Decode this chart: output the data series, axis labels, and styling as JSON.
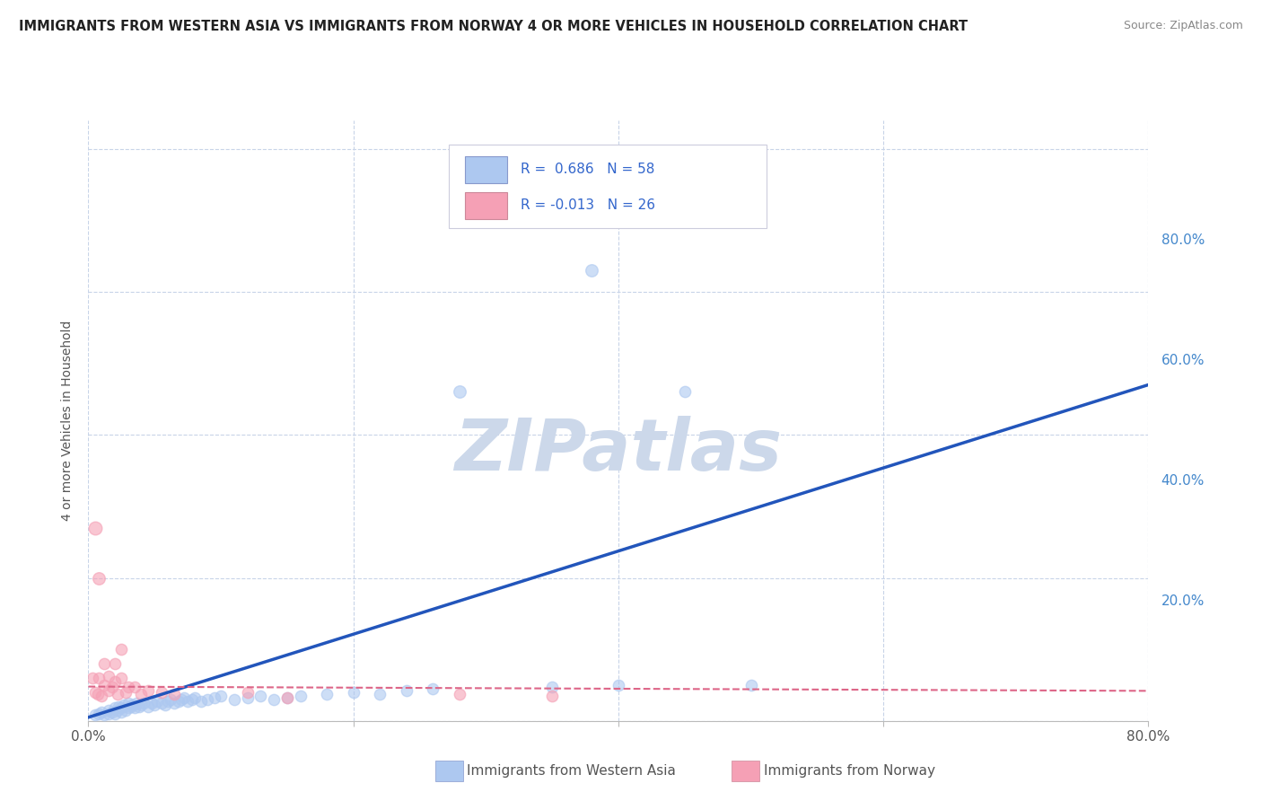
{
  "title": "IMMIGRANTS FROM WESTERN ASIA VS IMMIGRANTS FROM NORWAY 4 OR MORE VEHICLES IN HOUSEHOLD CORRELATION CHART",
  "source": "Source: ZipAtlas.com",
  "ylabel": "4 or more Vehicles in Household",
  "xlim": [
    0.0,
    0.8
  ],
  "ylim": [
    0.0,
    0.84
  ],
  "yticks": [
    0.0,
    0.2,
    0.4,
    0.6,
    0.8
  ],
  "xticks": [
    0.0,
    0.2,
    0.4,
    0.6,
    0.8
  ],
  "R_blue": 0.686,
  "N_blue": 58,
  "R_pink": -0.013,
  "N_pink": 26,
  "legend_label_blue": "Immigrants from Western Asia",
  "legend_label_pink": "Immigrants from Norway",
  "blue_scatter_color": "#adc8f0",
  "pink_scatter_color": "#f5a0b5",
  "blue_line_color": "#2255bb",
  "pink_line_color": "#dd6688",
  "scatter_alpha": 0.6,
  "scatter_size": 80,
  "watermark_color": "#ccd8ea",
  "background_color": "#ffffff",
  "grid_color": "#c8d4e8",
  "title_color": "#222222",
  "source_color": "#888888",
  "ylabel_color": "#555555",
  "ytick_color": "#4488cc",
  "xtick_color": "#555555",
  "blue_x": [
    0.005,
    0.008,
    0.01,
    0.012,
    0.015,
    0.015,
    0.018,
    0.02,
    0.02,
    0.022,
    0.023,
    0.025,
    0.025,
    0.027,
    0.028,
    0.03,
    0.03,
    0.032,
    0.033,
    0.035,
    0.036,
    0.038,
    0.04,
    0.042,
    0.045,
    0.048,
    0.05,
    0.052,
    0.055,
    0.058,
    0.06,
    0.062,
    0.065,
    0.068,
    0.07,
    0.072,
    0.075,
    0.078,
    0.08,
    0.085,
    0.09,
    0.095,
    0.1,
    0.11,
    0.12,
    0.13,
    0.14,
    0.15,
    0.16,
    0.18,
    0.2,
    0.22,
    0.24,
    0.26,
    0.35,
    0.4,
    0.45,
    0.5
  ],
  "blue_y": [
    0.008,
    0.01,
    0.012,
    0.008,
    0.01,
    0.015,
    0.012,
    0.01,
    0.018,
    0.015,
    0.02,
    0.012,
    0.018,
    0.022,
    0.015,
    0.018,
    0.025,
    0.02,
    0.022,
    0.018,
    0.025,
    0.02,
    0.022,
    0.025,
    0.02,
    0.025,
    0.022,
    0.028,
    0.025,
    0.022,
    0.028,
    0.03,
    0.025,
    0.028,
    0.03,
    0.032,
    0.028,
    0.03,
    0.032,
    0.028,
    0.03,
    0.032,
    0.035,
    0.03,
    0.032,
    0.035,
    0.03,
    0.032,
    0.035,
    0.038,
    0.04,
    0.038,
    0.042,
    0.045,
    0.048,
    0.05,
    0.46,
    0.05
  ],
  "pink_x": [
    0.003,
    0.005,
    0.007,
    0.008,
    0.01,
    0.012,
    0.012,
    0.015,
    0.015,
    0.018,
    0.02,
    0.02,
    0.022,
    0.025,
    0.025,
    0.028,
    0.03,
    0.035,
    0.04,
    0.045,
    0.055,
    0.065,
    0.12,
    0.15,
    0.28,
    0.35
  ],
  "pink_y": [
    0.06,
    0.04,
    0.038,
    0.06,
    0.035,
    0.05,
    0.08,
    0.042,
    0.062,
    0.048,
    0.055,
    0.08,
    0.038,
    0.06,
    0.1,
    0.04,
    0.048,
    0.048,
    0.038,
    0.042,
    0.04,
    0.038,
    0.04,
    0.032,
    0.038,
    0.035
  ],
  "blue_outlier_x": [
    0.38
  ],
  "blue_outlier_y": [
    0.63
  ],
  "blue_outlier2_x": [
    0.28
  ],
  "blue_outlier2_y": [
    0.46
  ],
  "pink_outlier_x": [
    0.005
  ],
  "pink_outlier_y": [
    0.27
  ],
  "pink_outlier2_x": [
    0.008
  ],
  "pink_outlier2_y": [
    0.2
  ],
  "blue_line_x": [
    0.0,
    0.8
  ],
  "blue_line_y": [
    0.005,
    0.47
  ],
  "pink_line_x": [
    0.0,
    0.8
  ],
  "pink_line_y": [
    0.048,
    0.042
  ]
}
